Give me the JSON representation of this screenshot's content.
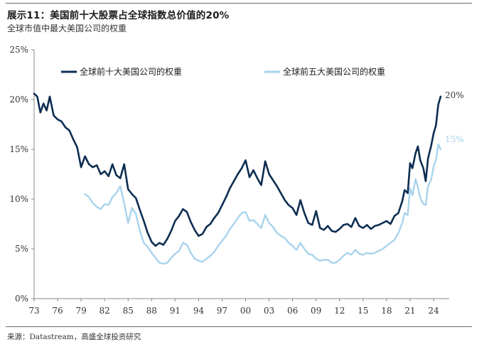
{
  "header": {
    "title": "展示11：美国前十大股票占全球指数总价值的20%",
    "subtitle": "全球市值中最大美国公司的权重"
  },
  "footer": {
    "source": "来源：Datastream，高盛全球投资研究"
  },
  "colors": {
    "top10": "#0d2d52",
    "top5": "#a9d3ec",
    "axis": "#888888"
  },
  "chart_data": {
    "type": "line",
    "title": "展示11：美国前十大股票占全球指数总价值的20%",
    "subtitle": "全球市值中最大美国公司的权重",
    "xlabel": "",
    "ylabel": "",
    "xlim": [
      1973,
      2026
    ],
    "ylim": [
      0,
      25
    ],
    "x_ticks": [
      1973,
      1976,
      1979,
      1982,
      1985,
      1988,
      1991,
      1994,
      1997,
      2000,
      2003,
      2006,
      2009,
      2012,
      2015,
      2018,
      2021,
      2024
    ],
    "x_tick_labels": [
      "73",
      "76",
      "79",
      "82",
      "85",
      "88",
      "91",
      "94",
      "97",
      "00",
      "03",
      "06",
      "09",
      "12",
      "15",
      "18",
      "21",
      "24"
    ],
    "y_ticks": [
      0,
      5,
      10,
      15,
      20,
      25
    ],
    "y_tick_labels": [
      "0%",
      "5%",
      "10%",
      "15%",
      "20%",
      "25%"
    ],
    "legend_position": "top",
    "grid": false,
    "series": [
      {
        "name": "全球前十大美国公司的权重",
        "end_label": "20%",
        "x": [
          1973.0,
          1973.4,
          1973.8,
          1974.2,
          1974.6,
          1975.0,
          1975.5,
          1976.0,
          1976.5,
          1977.0,
          1977.5,
          1978.0,
          1978.5,
          1979.0,
          1979.5,
          1980.0,
          1980.5,
          1981.0,
          1981.5,
          1982.0,
          1982.5,
          1983.0,
          1983.5,
          1984.0,
          1984.5,
          1985.0,
          1985.5,
          1986.0,
          1986.5,
          1987.0,
          1987.5,
          1988.0,
          1988.5,
          1989.0,
          1989.5,
          1990.0,
          1990.5,
          1991.0,
          1991.5,
          1992.0,
          1992.5,
          1993.0,
          1993.5,
          1994.0,
          1994.5,
          1995.0,
          1995.5,
          1996.0,
          1996.5,
          1997.0,
          1997.5,
          1998.0,
          1998.5,
          1999.0,
          1999.5,
          2000.0,
          2000.5,
          2001.0,
          2001.5,
          2002.0,
          2002.5,
          2003.0,
          2003.5,
          2004.0,
          2004.5,
          2005.0,
          2005.5,
          2006.0,
          2006.5,
          2007.0,
          2007.5,
          2008.0,
          2008.5,
          2009.0,
          2009.5,
          2010.0,
          2010.5,
          2011.0,
          2011.5,
          2012.0,
          2012.5,
          2013.0,
          2013.5,
          2014.0,
          2014.5,
          2015.0,
          2015.5,
          2016.0,
          2016.5,
          2017.0,
          2017.5,
          2018.0,
          2018.5,
          2019.0,
          2019.5,
          2020.0,
          2020.3,
          2020.7,
          2021.0,
          2021.3,
          2021.7,
          2022.0,
          2022.3,
          2022.7,
          2023.0,
          2023.3,
          2023.7,
          2024.0,
          2024.3,
          2024.6,
          2024.9
        ],
        "y": [
          20.6,
          20.3,
          18.7,
          19.6,
          18.9,
          20.3,
          18.4,
          18.0,
          17.8,
          17.2,
          16.9,
          16.0,
          15.2,
          13.2,
          14.3,
          13.5,
          13.2,
          13.4,
          12.5,
          12.8,
          12.3,
          13.5,
          12.4,
          12.1,
          13.5,
          11.0,
          10.5,
          10.1,
          8.9,
          7.8,
          6.6,
          5.7,
          5.3,
          5.6,
          5.4,
          6.0,
          6.8,
          7.8,
          8.3,
          9.0,
          8.7,
          7.7,
          6.9,
          6.3,
          6.5,
          7.2,
          7.5,
          8.1,
          8.6,
          9.4,
          10.2,
          11.1,
          11.8,
          12.5,
          13.1,
          13.9,
          12.2,
          12.9,
          12.1,
          11.4,
          13.8,
          12.5,
          11.9,
          11.3,
          10.6,
          9.9,
          9.4,
          9.1,
          8.4,
          9.9,
          8.6,
          7.6,
          7.4,
          8.8,
          7.1,
          6.9,
          7.3,
          6.8,
          6.7,
          7.0,
          7.4,
          7.5,
          7.2,
          8.1,
          7.3,
          7.1,
          7.4,
          7.0,
          7.3,
          7.4,
          7.6,
          7.8,
          7.5,
          8.3,
          8.6,
          9.8,
          10.9,
          10.6,
          13.6,
          13.1,
          14.6,
          15.3,
          13.9,
          13.1,
          11.8,
          14.1,
          15.4,
          16.6,
          17.4,
          19.5,
          20.3
        ]
      },
      {
        "name": "全球前五大美国公司的权重",
        "end_label": "15%",
        "x": [
          1979.5,
          1980.0,
          1980.5,
          1981.0,
          1981.5,
          1982.0,
          1982.5,
          1983.0,
          1983.5,
          1984.0,
          1984.5,
          1985.0,
          1985.5,
          1986.0,
          1986.5,
          1987.0,
          1987.5,
          1988.0,
          1988.5,
          1989.0,
          1989.5,
          1990.0,
          1990.5,
          1991.0,
          1991.5,
          1992.0,
          1992.5,
          1993.0,
          1993.5,
          1994.0,
          1994.5,
          1995.0,
          1995.5,
          1996.0,
          1996.5,
          1997.0,
          1997.5,
          1998.0,
          1998.5,
          1999.0,
          1999.5,
          2000.0,
          2000.5,
          2001.0,
          2001.5,
          2002.0,
          2002.5,
          2003.0,
          2003.5,
          2004.0,
          2004.5,
          2005.0,
          2005.5,
          2006.0,
          2006.5,
          2007.0,
          2007.5,
          2008.0,
          2008.5,
          2009.0,
          2009.5,
          2010.0,
          2010.5,
          2011.0,
          2011.5,
          2012.0,
          2012.5,
          2013.0,
          2013.5,
          2014.0,
          2014.5,
          2015.0,
          2015.5,
          2016.0,
          2016.5,
          2017.0,
          2017.5,
          2018.0,
          2018.5,
          2019.0,
          2019.5,
          2020.0,
          2020.3,
          2020.7,
          2021.0,
          2021.3,
          2021.7,
          2022.0,
          2022.3,
          2022.7,
          2023.0,
          2023.3,
          2023.7,
          2024.0,
          2024.3,
          2024.6,
          2024.9
        ],
        "y": [
          10.5,
          10.2,
          9.6,
          9.2,
          9.0,
          9.5,
          9.4,
          10.2,
          10.6,
          11.3,
          9.6,
          7.6,
          9.1,
          8.5,
          6.8,
          5.6,
          5.2,
          4.6,
          4.1,
          3.6,
          3.5,
          3.6,
          4.1,
          4.5,
          4.8,
          5.6,
          5.4,
          4.6,
          4.0,
          3.8,
          3.7,
          4.0,
          4.3,
          4.7,
          5.3,
          5.8,
          6.3,
          7.0,
          7.5,
          8.1,
          8.6,
          8.7,
          7.8,
          7.9,
          7.5,
          7.1,
          8.4,
          7.6,
          7.2,
          6.6,
          6.3,
          6.1,
          5.6,
          5.3,
          4.9,
          5.6,
          5.0,
          4.5,
          4.4,
          4.0,
          3.8,
          3.9,
          3.9,
          3.6,
          3.6,
          3.9,
          4.3,
          4.6,
          4.4,
          4.9,
          4.5,
          4.4,
          4.6,
          4.5,
          4.6,
          4.8,
          5.0,
          5.3,
          5.6,
          5.9,
          6.6,
          7.6,
          8.6,
          8.4,
          11.1,
          10.4,
          12.0,
          11.2,
          10.1,
          9.5,
          9.4,
          11.3,
          12.0,
          13.3,
          13.9,
          15.5,
          15.0
        ]
      }
    ]
  }
}
